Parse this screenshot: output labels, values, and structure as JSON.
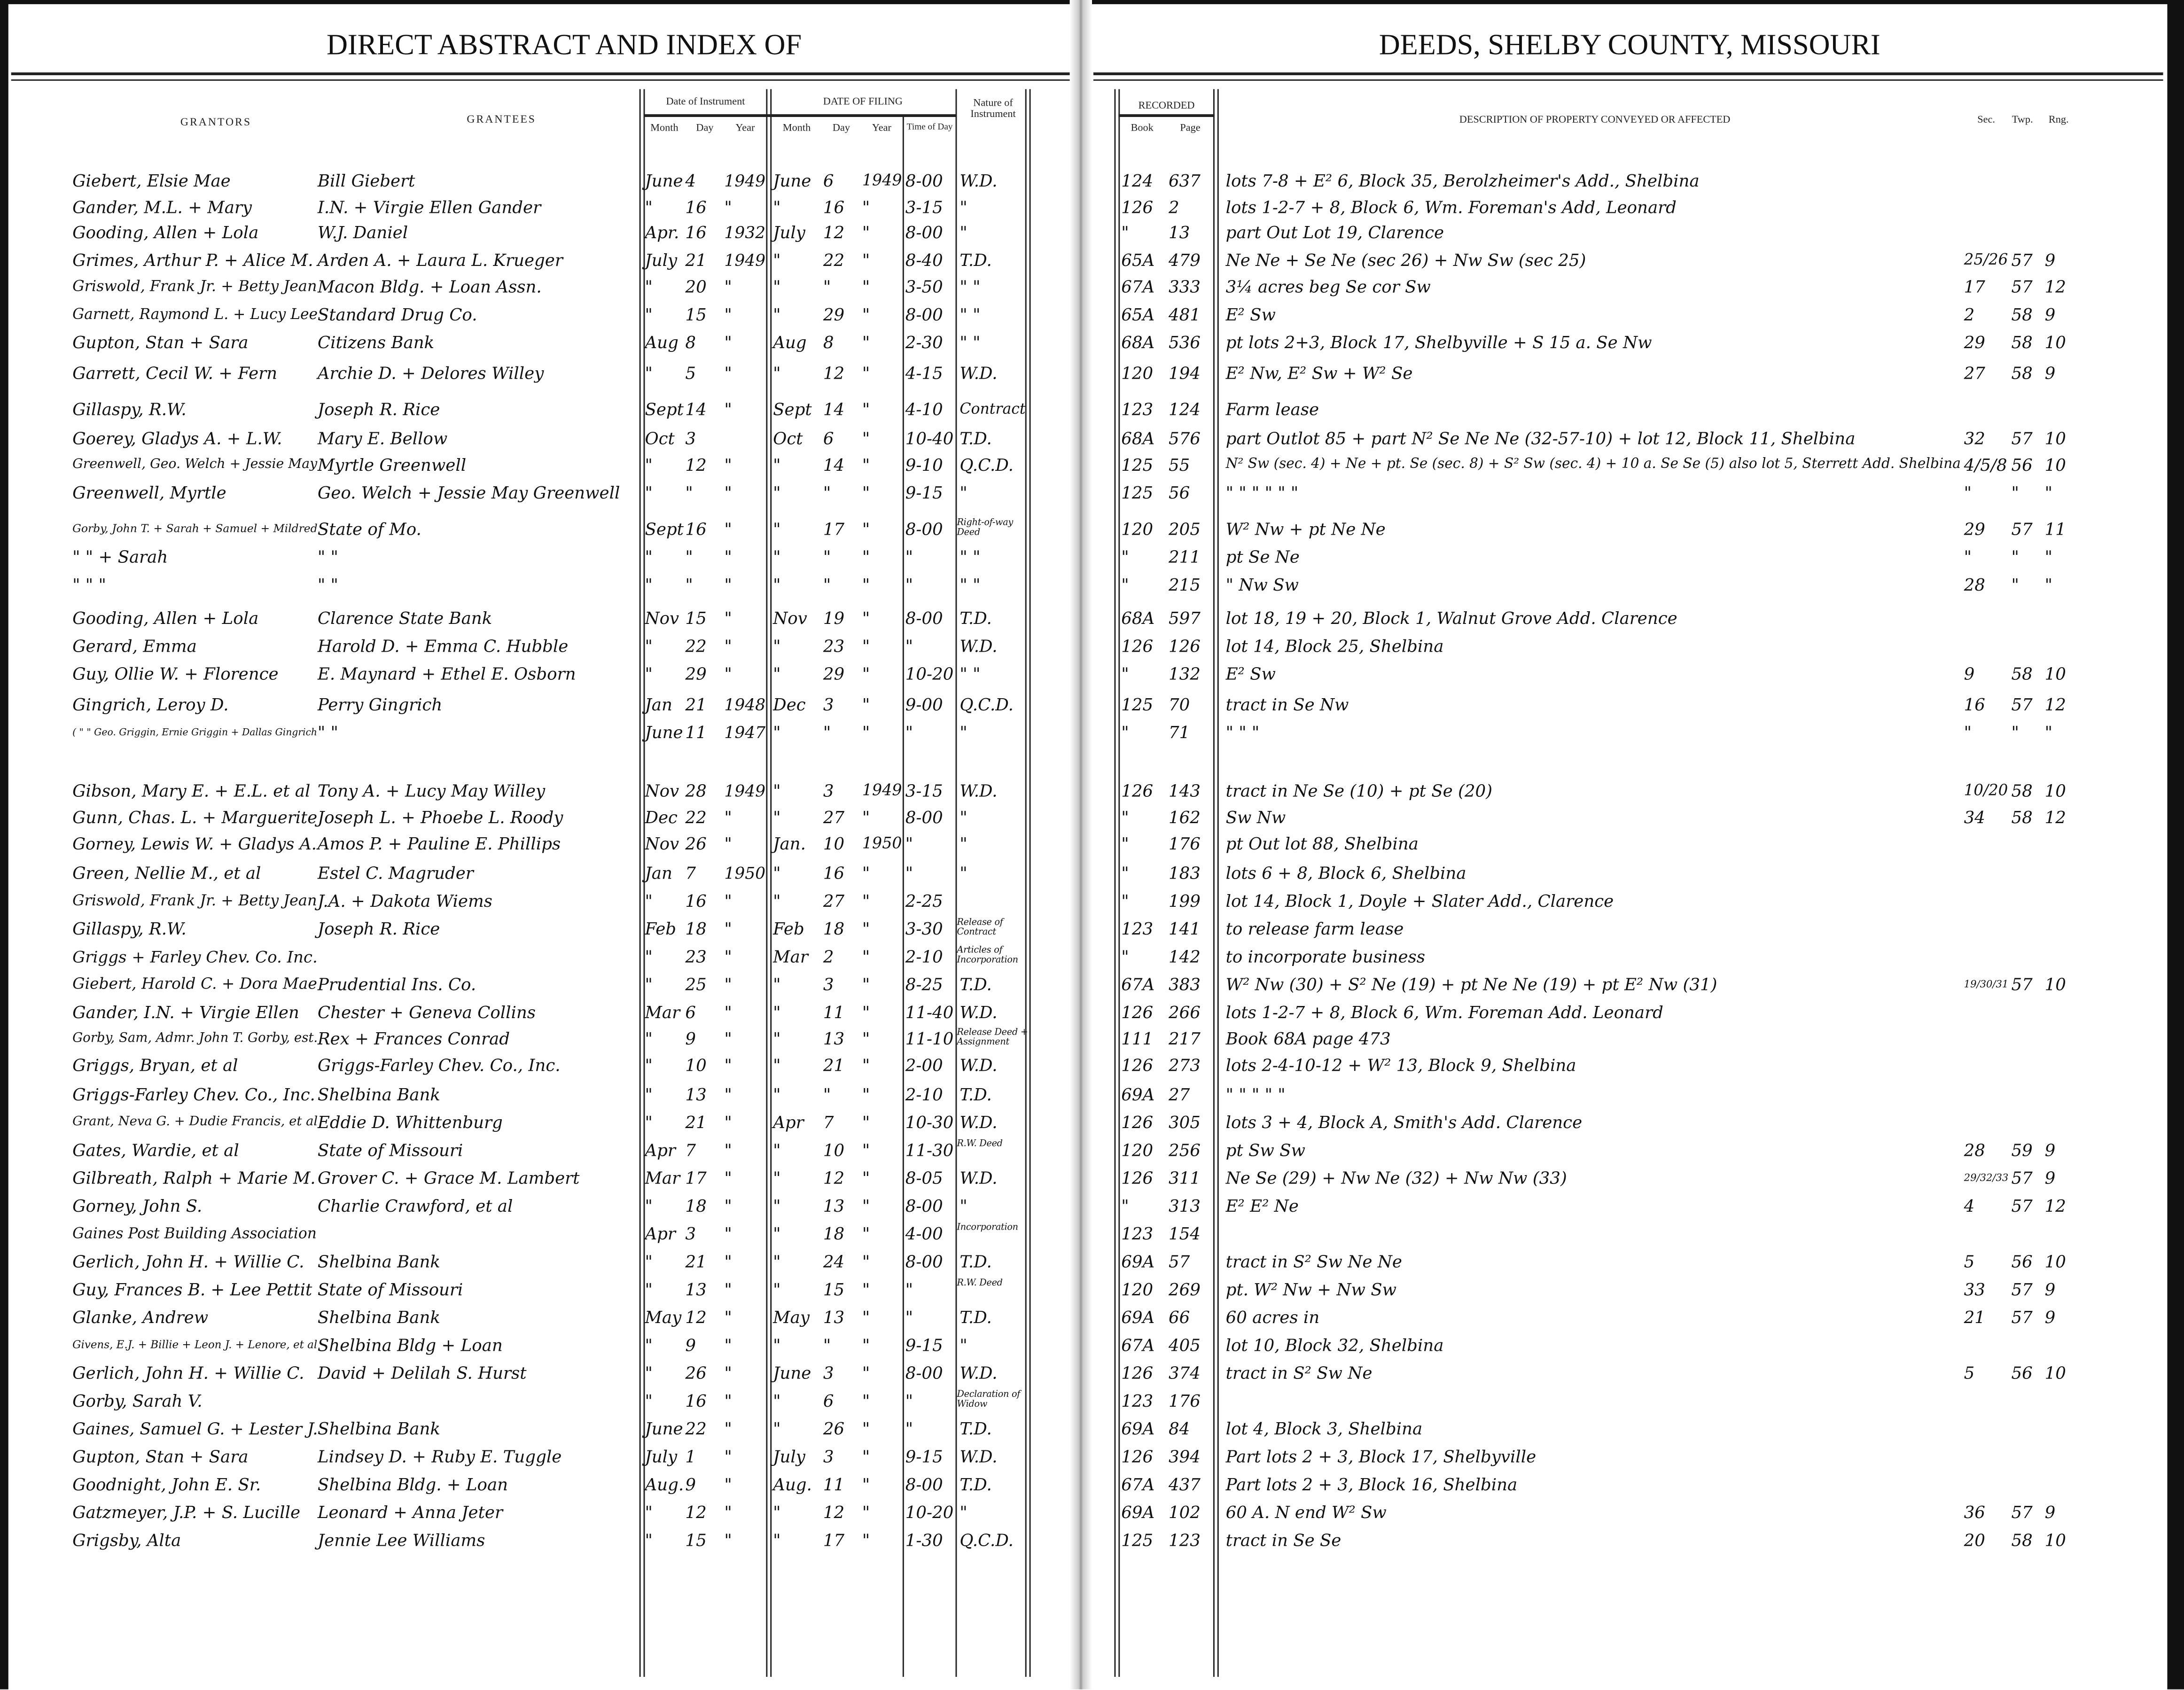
{
  "header": {
    "left_title": "DIRECT ABSTRACT AND INDEX OF",
    "right_title": "DEEDS, SHELBY COUNTY, MISSOURI"
  },
  "columns": {
    "grantors": "GRANTORS",
    "grantees": "GRANTEES",
    "date_of_instrument": "Date of Instrument",
    "date_of_filing": "DATE OF FILING",
    "month": "Month",
    "day": "Day",
    "year": "Year",
    "time_of_day": "Time of Day",
    "nature": "Nature of Instrument",
    "recorded": "RECORDED",
    "book": "Book",
    "page": "Page",
    "description": "DESCRIPTION OF PROPERTY CONVEYED OR AFFECTED",
    "sec": "Sec.",
    "twp": "Twp.",
    "rng": "Rng."
  },
  "rows": [
    {
      "grantor": "Giebert, Elsie Mae",
      "grantee": "Bill Giebert",
      "im": "June",
      "id": "4",
      "iy": "1949",
      "fm": "June",
      "fd": "6",
      "fy": "1949",
      "time": "8-00",
      "nature": "W.D.",
      "book": "124",
      "page": "637",
      "desc": "lots 7-8 + E² 6, Block 35, Berolzheimer's Add., Shelbina",
      "sec": "",
      "twp": "",
      "rng": ""
    },
    {
      "grantor": "Gander, M.L. + Mary",
      "grantee": "I.N. + Virgie Ellen Gander",
      "im": "\"",
      "id": "16",
      "iy": "\"",
      "fm": "\"",
      "fd": "16",
      "fy": "\"",
      "time": "3-15",
      "nature": "\"",
      "book": "126",
      "page": "2",
      "desc": "lots 1-2-7 + 8, Block 6, Wm. Foreman's Add, Leonard",
      "sec": "",
      "twp": "",
      "rng": ""
    },
    {
      "grantor": "Gooding, Allen + Lola",
      "grantee": "W.J. Daniel",
      "im": "Apr.",
      "id": "16",
      "iy": "1932",
      "fm": "July",
      "fd": "12",
      "fy": "\"",
      "time": "8-00",
      "nature": "\"",
      "book": "\"",
      "page": "13",
      "desc": "part Out Lot 19, Clarence",
      "sec": "",
      "twp": "",
      "rng": ""
    },
    {
      "grantor": "Grimes, Arthur P. + Alice M.",
      "grantee": "Arden A. + Laura L. Krueger",
      "im": "July",
      "id": "21",
      "iy": "1949",
      "fm": "\"",
      "fd": "22",
      "fy": "\"",
      "time": "8-40",
      "nature": "T.D.",
      "book": "65A",
      "page": "479",
      "desc": "Ne Ne + Se Ne (sec 26) + Nw Sw (sec 25)",
      "sec": "25/26",
      "twp": "57",
      "rng": "9"
    },
    {
      "grantor": "Griswold, Frank Jr. + Betty Jean",
      "grantee": "Macon Bldg. + Loan Assn.",
      "im": "\"",
      "id": "20",
      "iy": "\"",
      "fm": "\"",
      "fd": "\"",
      "fy": "\"",
      "time": "3-50",
      "nature": "\" \"",
      "book": "67A",
      "page": "333",
      "desc": "3¼ acres beg Se cor Sw",
      "sec": "17",
      "twp": "57",
      "rng": "12"
    },
    {
      "grantor": "Garnett, Raymond L. + Lucy Lee",
      "grantee": "Standard Drug Co.",
      "im": "\"",
      "id": "15",
      "iy": "\"",
      "fm": "\"",
      "fd": "29",
      "fy": "\"",
      "time": "8-00",
      "nature": "\" \"",
      "book": "65A",
      "page": "481",
      "desc": "E² Sw",
      "sec": "2",
      "twp": "58",
      "rng": "9"
    },
    {
      "grantor": "Gupton, Stan + Sara",
      "grantee": "Citizens Bank",
      "im": "Aug",
      "id": "8",
      "iy": "\"",
      "fm": "Aug",
      "fd": "8",
      "fy": "\"",
      "time": "2-30",
      "nature": "\" \"",
      "book": "68A",
      "page": "536",
      "desc": "pt lots 2+3, Block 17, Shelbyville + S 15 a. Se Nw",
      "sec": "29",
      "twp": "58",
      "rng": "10"
    },
    {
      "grantor": "Garrett, Cecil W. + Fern",
      "grantee": "Archie D. + Delores Willey",
      "im": "\"",
      "id": "5",
      "iy": "\"",
      "fm": "\"",
      "fd": "12",
      "fy": "\"",
      "time": "4-15",
      "nature": "W.D.",
      "book": "120",
      "page": "194",
      "desc": "E² Nw, E² Sw + W² Se",
      "sec": "27",
      "twp": "58",
      "rng": "9"
    },
    {
      "grantor": "Gillaspy, R.W.",
      "grantee": "Joseph R. Rice",
      "im": "Sept",
      "id": "14",
      "iy": "\"",
      "fm": "Sept",
      "fd": "14",
      "fy": "\"",
      "time": "4-10",
      "nature": "Contract",
      "book": "123",
      "page": "124",
      "desc": "Farm lease",
      "sec": "",
      "twp": "",
      "rng": ""
    },
    {
      "grantor": "Goerey, Gladys A. + L.W.",
      "grantee": "Mary E. Bellow",
      "im": "Oct",
      "id": "3",
      "iy": "",
      "fm": "Oct",
      "fd": "6",
      "fy": "\"",
      "time": "10-40",
      "nature": "T.D.",
      "book": "68A",
      "page": "576",
      "desc": "part Outlot 85 + part N² Se Ne Ne (32-57-10) + lot 12, Block 11, Shelbina",
      "sec": "32",
      "twp": "57",
      "rng": "10"
    },
    {
      "grantor": "Greenwell, Geo. Welch + Jessie May",
      "grantee": "Myrtle Greenwell",
      "im": "\"",
      "id": "12",
      "iy": "\"",
      "fm": "\"",
      "fd": "14",
      "fy": "\"",
      "time": "9-10",
      "nature": "Q.C.D.",
      "book": "125",
      "page": "55",
      "desc": "N² Sw (sec. 4) + Ne + pt. Se (sec. 8) + S² Sw (sec. 4) + 10 a. Se Se (5) also lot 5, Sterrett Add. Shelbina",
      "sec": "4/5/8",
      "twp": "56",
      "rng": "10"
    },
    {
      "grantor": "Greenwell, Myrtle",
      "grantee": "Geo. Welch + Jessie May Greenwell",
      "im": "\"",
      "id": "\"",
      "iy": "\"",
      "fm": "\"",
      "fd": "\"",
      "fy": "\"",
      "time": "9-15",
      "nature": "\"",
      "book": "125",
      "page": "56",
      "desc": "\"        \"        \"        \"        \"        \"",
      "sec": "\"",
      "twp": "\"",
      "rng": "\""
    },
    {
      "grantor": "Gorby, John T. + Sarah + Samuel + Mildred",
      "grantee": "State of Mo.",
      "im": "Sept",
      "id": "16",
      "iy": "\"",
      "fm": "\"",
      "fd": "17",
      "fy": "\"",
      "time": "8-00",
      "nature": "Right-of-way Deed",
      "book": "120",
      "page": "205",
      "desc": "W² Nw + pt Ne Ne",
      "sec": "29",
      "twp": "57",
      "rng": "11"
    },
    {
      "grantor": "\"     \" + Sarah",
      "grantee": "\"      \"",
      "im": "\"",
      "id": "\"",
      "iy": "\"",
      "fm": "\"",
      "fd": "\"",
      "fy": "\"",
      "time": "\"",
      "nature": "\" \"",
      "book": "\"",
      "page": "211",
      "desc": "pt Se Ne",
      "sec": "\"",
      "twp": "\"",
      "rng": "\""
    },
    {
      "grantor": "\"     \"     \"",
      "grantee": "\"      \"",
      "im": "\"",
      "id": "\"",
      "iy": "\"",
      "fm": "\"",
      "fd": "\"",
      "fy": "\"",
      "time": "\"",
      "nature": "\" \"",
      "book": "\"",
      "page": "215",
      "desc": "\" Nw Sw",
      "sec": "28",
      "twp": "\"",
      "rng": "\""
    },
    {
      "grantor": "Gooding, Allen + Lola",
      "grantee": "Clarence State Bank",
      "im": "Nov",
      "id": "15",
      "iy": "\"",
      "fm": "Nov",
      "fd": "19",
      "fy": "\"",
      "time": "8-00",
      "nature": "T.D.",
      "book": "68A",
      "page": "597",
      "desc": "lot 18, 19 + 20, Block 1, Walnut Grove Add. Clarence",
      "sec": "",
      "twp": "",
      "rng": ""
    },
    {
      "grantor": "Gerard, Emma",
      "grantee": "Harold D. + Emma C. Hubble",
      "im": "\"",
      "id": "22",
      "iy": "\"",
      "fm": "\"",
      "fd": "23",
      "fy": "\"",
      "time": "\"",
      "nature": "W.D.",
      "book": "126",
      "page": "126",
      "desc": "lot 14, Block 25, Shelbina",
      "sec": "",
      "twp": "",
      "rng": ""
    },
    {
      "grantor": "Guy, Ollie W. + Florence",
      "grantee": "E. Maynard + Ethel E. Osborn",
      "im": "\"",
      "id": "29",
      "iy": "\"",
      "fm": "\"",
      "fd": "29",
      "fy": "\"",
      "time": "10-20",
      "nature": "\" \"",
      "book": "\"",
      "page": "132",
      "desc": "E² Sw",
      "sec": "9",
      "twp": "58",
      "rng": "10"
    },
    {
      "grantor": "Gingrich, Leroy D.",
      "grantee": "Perry Gingrich",
      "im": "Jan",
      "id": "21",
      "iy": "1948",
      "fm": "Dec",
      "fd": "3",
      "fy": "\"",
      "time": "9-00",
      "nature": "Q.C.D.",
      "book": "125",
      "page": "70",
      "desc": "tract in Se Nw",
      "sec": "16",
      "twp": "57",
      "rng": "12"
    },
    {
      "grantor": "( \"   \"  Geo. Griggin, Ernie Griggin + Dallas Gingrich",
      "grantee": "\"      \"",
      "im": "June",
      "id": "11",
      "iy": "1947",
      "fm": "\"",
      "fd": "\"",
      "fy": "\"",
      "time": "\"",
      "nature": "\"",
      "book": "\"",
      "page": "71",
      "desc": "\"        \"        \"",
      "sec": "\"",
      "twp": "\"",
      "rng": "\""
    },
    {
      "grantor": "Gibson, Mary E. + E.L. et al",
      "grantee": "Tony A. + Lucy May Willey",
      "im": "Nov",
      "id": "28",
      "iy": "1949",
      "fm": "\"",
      "fd": "3",
      "fy": "1949",
      "time": "3-15",
      "nature": "W.D.",
      "book": "126",
      "page": "143",
      "desc": "tract in Ne Se (10) + pt Se (20)",
      "sec": "10/20",
      "twp": "58",
      "rng": "10"
    },
    {
      "grantor": "Gunn, Chas. L. + Marguerite",
      "grantee": "Joseph L. + Phoebe L. Roody",
      "im": "Dec",
      "id": "22",
      "iy": "\"",
      "fm": "\"",
      "fd": "27",
      "fy": "\"",
      "time": "8-00",
      "nature": "\"",
      "book": "\"",
      "page": "162",
      "desc": "Sw Nw",
      "sec": "34",
      "twp": "58",
      "rng": "12"
    },
    {
      "grantor": "Gorney, Lewis W. + Gladys A.",
      "grantee": "Amos P. + Pauline E. Phillips",
      "im": "Nov",
      "id": "26",
      "iy": "\"",
      "fm": "Jan.",
      "fd": "10",
      "fy": "1950",
      "time": "\"",
      "nature": "\"",
      "book": "\"",
      "page": "176",
      "desc": "pt Out lot 88, Shelbina",
      "sec": "",
      "twp": "",
      "rng": ""
    },
    {
      "grantor": "Green, Nellie M., et al",
      "grantee": "Estel C. Magruder",
      "im": "Jan",
      "id": "7",
      "iy": "1950",
      "fm": "\"",
      "fd": "16",
      "fy": "\"",
      "time": "\"",
      "nature": "\"",
      "book": "\"",
      "page": "183",
      "desc": "lots 6 + 8, Block 6, Shelbina",
      "sec": "",
      "twp": "",
      "rng": ""
    },
    {
      "grantor": "Griswold, Frank Jr. + Betty Jean",
      "grantee": "J.A. + Dakota Wiems",
      "im": "\"",
      "id": "16",
      "iy": "\"",
      "fm": "\"",
      "fd": "27",
      "fy": "\"",
      "time": "2-25",
      "nature": "",
      "book": "\"",
      "page": "199",
      "desc": "lot 14, Block 1, Doyle + Slater Add., Clarence",
      "sec": "",
      "twp": "",
      "rng": ""
    },
    {
      "grantor": "Gillaspy, R.W.",
      "grantee": "Joseph R. Rice",
      "im": "Feb",
      "id": "18",
      "iy": "\"",
      "fm": "Feb",
      "fd": "18",
      "fy": "\"",
      "time": "3-30",
      "nature": "Release of Contract",
      "book": "123",
      "page": "141",
      "desc": "to release farm lease",
      "sec": "",
      "twp": "",
      "rng": ""
    },
    {
      "grantor": "Griggs + Farley Chev. Co. Inc.",
      "grantee": "",
      "im": "\"",
      "id": "23",
      "iy": "\"",
      "fm": "Mar",
      "fd": "2",
      "fy": "\"",
      "time": "2-10",
      "nature": "Articles of Incorporation",
      "book": "\"",
      "page": "142",
      "desc": "to incorporate business",
      "sec": "",
      "twp": "",
      "rng": ""
    },
    {
      "grantor": "Giebert, Harold C. + Dora Mae",
      "grantee": "Prudential Ins. Co.",
      "im": "\"",
      "id": "25",
      "iy": "\"",
      "fm": "\"",
      "fd": "3",
      "fy": "\"",
      "time": "8-25",
      "nature": "T.D.",
      "book": "67A",
      "page": "383",
      "desc": "W² Nw (30) + S² Ne (19) + pt Ne Ne (19) + pt E² Nw (31)",
      "sec": "19/30/31",
      "twp": "57",
      "rng": "10"
    },
    {
      "grantor": "Gander, I.N. + Virgie Ellen",
      "grantee": "Chester + Geneva Collins",
      "im": "Mar",
      "id": "6",
      "iy": "\"",
      "fm": "\"",
      "fd": "11",
      "fy": "\"",
      "time": "11-40",
      "nature": "W.D.",
      "book": "126",
      "page": "266",
      "desc": "lots 1-2-7 + 8, Block 6, Wm. Foreman Add. Leonard",
      "sec": "",
      "twp": "",
      "rng": ""
    },
    {
      "grantor": "Gorby, Sam, Admr. John T. Gorby, est.",
      "grantee": "Rex + Frances Conrad",
      "im": "\"",
      "id": "9",
      "iy": "\"",
      "fm": "\"",
      "fd": "13",
      "fy": "\"",
      "time": "11-10",
      "nature": "Release Deed + Assignment",
      "book": "111",
      "page": "217",
      "desc": "Book 68A page 473",
      "sec": "",
      "twp": "",
      "rng": ""
    },
    {
      "grantor": "Griggs, Bryan, et al",
      "grantee": "Griggs-Farley Chev. Co., Inc.",
      "im": "\"",
      "id": "10",
      "iy": "\"",
      "fm": "\"",
      "fd": "21",
      "fy": "\"",
      "time": "2-00",
      "nature": "W.D.",
      "book": "126",
      "page": "273",
      "desc": "lots 2-4-10-12 + W² 13, Block 9, Shelbina",
      "sec": "",
      "twp": "",
      "rng": ""
    },
    {
      "grantor": "Griggs-Farley Chev. Co., Inc.",
      "grantee": "Shelbina Bank",
      "im": "\"",
      "id": "13",
      "iy": "\"",
      "fm": "\"",
      "fd": "\"",
      "fy": "\"",
      "time": "2-10",
      "nature": "T.D.",
      "book": "69A",
      "page": "27",
      "desc": "\"        \"        \"        \"        \"",
      "sec": "",
      "twp": "",
      "rng": ""
    },
    {
      "grantor": "Grant, Neva G. + Dudie Francis, et al",
      "grantee": "Eddie D. Whittenburg",
      "im": "\"",
      "id": "21",
      "iy": "\"",
      "fm": "Apr",
      "fd": "7",
      "fy": "\"",
      "time": "10-30",
      "nature": "W.D.",
      "book": "126",
      "page": "305",
      "desc": "lots 3 + 4, Block A, Smith's Add. Clarence",
      "sec": "",
      "twp": "",
      "rng": ""
    },
    {
      "grantor": "Gates, Wardie, et al",
      "grantee": "State of Missouri",
      "im": "Apr",
      "id": "7",
      "iy": "\"",
      "fm": "\"",
      "fd": "10",
      "fy": "\"",
      "time": "11-30",
      "nature": "R.W. Deed",
      "book": "120",
      "page": "256",
      "desc": "pt Sw Sw",
      "sec": "28",
      "twp": "59",
      "rng": "9"
    },
    {
      "grantor": "Gilbreath, Ralph + Marie M.",
      "grantee": "Grover C. + Grace M. Lambert",
      "im": "Mar",
      "id": "17",
      "iy": "\"",
      "fm": "\"",
      "fd": "12",
      "fy": "\"",
      "time": "8-05",
      "nature": "W.D.",
      "book": "126",
      "page": "311",
      "desc": "Ne Se (29) + Nw Ne (32) + Nw Nw (33)",
      "sec": "29/32/33",
      "twp": "57",
      "rng": "9"
    },
    {
      "grantor": "Gorney, John S.",
      "grantee": "Charlie Crawford, et al",
      "im": "\"",
      "id": "18",
      "iy": "\"",
      "fm": "\"",
      "fd": "13",
      "fy": "\"",
      "time": "8-00",
      "nature": "\"",
      "book": "\"",
      "page": "313",
      "desc": "E² E² Ne",
      "sec": "4",
      "twp": "57",
      "rng": "12"
    },
    {
      "grantor": "Gaines Post Building Association",
      "grantee": "",
      "im": "Apr",
      "id": "3",
      "iy": "\"",
      "fm": "\"",
      "fd": "18",
      "fy": "\"",
      "time": "4-00",
      "nature": "Incorporation",
      "book": "123",
      "page": "154",
      "desc": "",
      "sec": "",
      "twp": "",
      "rng": ""
    },
    {
      "grantor": "Gerlich, John H. + Willie C.",
      "grantee": "Shelbina Bank",
      "im": "\"",
      "id": "21",
      "iy": "\"",
      "fm": "\"",
      "fd": "24",
      "fy": "\"",
      "time": "8-00",
      "nature": "T.D.",
      "book": "69A",
      "page": "57",
      "desc": "tract in S² Sw Ne Ne",
      "sec": "5",
      "twp": "56",
      "rng": "10"
    },
    {
      "grantor": "Guy, Frances B. + Lee Pettit",
      "grantee": "State of Missouri",
      "im": "\"",
      "id": "13",
      "iy": "\"",
      "fm": "\"",
      "fd": "15",
      "fy": "\"",
      "time": "\"",
      "nature": "R.W. Deed",
      "book": "120",
      "page": "269",
      "desc": "pt. W² Nw + Nw Sw",
      "sec": "33",
      "twp": "57",
      "rng": "9"
    },
    {
      "grantor": "Glanke, Andrew",
      "grantee": "Shelbina Bank",
      "im": "May",
      "id": "12",
      "iy": "\"",
      "fm": "May",
      "fd": "13",
      "fy": "\"",
      "time": "\"",
      "nature": "T.D.",
      "book": "69A",
      "page": "66",
      "desc": "60 acres in",
      "sec": "21",
      "twp": "57",
      "rng": "9"
    },
    {
      "grantor": "Givens, E.J. + Billie + Leon J. + Lenore, et al",
      "grantee": "Shelbina Bldg + Loan",
      "im": "\"",
      "id": "9",
      "iy": "\"",
      "fm": "\"",
      "fd": "\"",
      "fy": "\"",
      "time": "9-15",
      "nature": "\"",
      "book": "67A",
      "page": "405",
      "desc": "lot 10, Block 32, Shelbina",
      "sec": "",
      "twp": "",
      "rng": ""
    },
    {
      "grantor": "Gerlich, John H. + Willie C.",
      "grantee": "David + Delilah S. Hurst",
      "im": "\"",
      "id": "26",
      "iy": "\"",
      "fm": "June",
      "fd": "3",
      "fy": "\"",
      "time": "8-00",
      "nature": "W.D.",
      "book": "126",
      "page": "374",
      "desc": "tract in S² Sw Ne",
      "sec": "5",
      "twp": "56",
      "rng": "10"
    },
    {
      "grantor": "Gorby, Sarah V.",
      "grantee": "",
      "im": "\"",
      "id": "16",
      "iy": "\"",
      "fm": "\"",
      "fd": "6",
      "fy": "\"",
      "time": "\"",
      "nature": "Declaration of Widow",
      "book": "123",
      "page": "176",
      "desc": "",
      "sec": "",
      "twp": "",
      "rng": ""
    },
    {
      "grantor": "Gaines, Samuel G. + Lester J.",
      "grantee": "Shelbina Bank",
      "im": "June",
      "id": "22",
      "iy": "\"",
      "fm": "\"",
      "fd": "26",
      "fy": "\"",
      "time": "\"",
      "nature": "T.D.",
      "book": "69A",
      "page": "84",
      "desc": "lot 4, Block 3, Shelbina",
      "sec": "",
      "twp": "",
      "rng": ""
    },
    {
      "grantor": "Gupton, Stan + Sara",
      "grantee": "Lindsey D. + Ruby E. Tuggle",
      "im": "July",
      "id": "1",
      "iy": "\"",
      "fm": "July",
      "fd": "3",
      "fy": "\"",
      "time": "9-15",
      "nature": "W.D.",
      "book": "126",
      "page": "394",
      "desc": "Part lots 2 + 3, Block 17, Shelbyville",
      "sec": "",
      "twp": "",
      "rng": ""
    },
    {
      "grantor": "Goodnight, John E. Sr.",
      "grantee": "Shelbina Bldg. + Loan",
      "im": "Aug.",
      "id": "9",
      "iy": "\"",
      "fm": "Aug.",
      "fd": "11",
      "fy": "\"",
      "time": "8-00",
      "nature": "T.D.",
      "book": "67A",
      "page": "437",
      "desc": "Part lots 2 + 3, Block 16, Shelbina",
      "sec": "",
      "twp": "",
      "rng": ""
    },
    {
      "grantor": "Gatzmeyer, J.P. + S. Lucille",
      "grantee": "Leonard + Anna Jeter",
      "im": "\"",
      "id": "12",
      "iy": "\"",
      "fm": "\"",
      "fd": "12",
      "fy": "\"",
      "time": "10-20",
      "nature": "\"",
      "book": "69A",
      "page": "102",
      "desc": "60 A. N end W² Sw",
      "sec": "36",
      "twp": "57",
      "rng": "9"
    },
    {
      "grantor": "Grigsby, Alta",
      "grantee": "Jennie Lee Williams",
      "im": "\"",
      "id": "15",
      "iy": "\"",
      "fm": "\"",
      "fd": "17",
      "fy": "\"",
      "time": "1-30",
      "nature": "Q.C.D.",
      "book": "125",
      "page": "123",
      "desc": "tract in Se Se",
      "sec": "20",
      "twp": "58",
      "rng": "10"
    }
  ]
}
